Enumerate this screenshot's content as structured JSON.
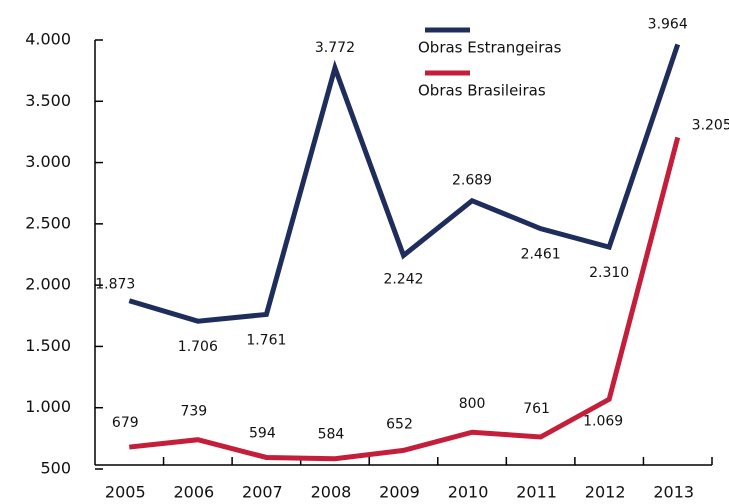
{
  "chart_data": {
    "type": "line",
    "categories": [
      "2005",
      "2006",
      "2007",
      "2008",
      "2009",
      "2010",
      "2011",
      "2012",
      "2013"
    ],
    "series": [
      {
        "name": "Obras Estrangeiras",
        "color": "#1f2d5c",
        "values": [
          1873,
          1706,
          1761,
          3772,
          2242,
          2689,
          2461,
          2310,
          3964
        ],
        "value_labels": [
          "1.873",
          "1.706",
          "1.761",
          "3.772",
          "2.242",
          "2.689",
          "2.461",
          "2.310",
          "3.964"
        ]
      },
      {
        "name": "Obras Brasileiras",
        "color": "#c41e3a",
        "values": [
          679,
          739,
          594,
          584,
          652,
          800,
          761,
          1069,
          3205
        ],
        "value_labels": [
          "679",
          "739",
          "594",
          "584",
          "652",
          "800",
          "761",
          "1.069",
          "3.205"
        ]
      }
    ],
    "ylim": [
      500,
      4000
    ],
    "yticks": [
      500,
      {
        "value": 1000,
        "label": "1.000"
      },
      {
        "value": 1500,
        "label": "1.500"
      },
      {
        "value": 2000,
        "label": "2.000"
      },
      {
        "value": 2500,
        "label": "2.500"
      },
      {
        "value": 3000,
        "label": "3.000"
      },
      {
        "value": 3500,
        "label": "3.500"
      },
      {
        "value": 4000,
        "label": "4.000"
      }
    ]
  }
}
